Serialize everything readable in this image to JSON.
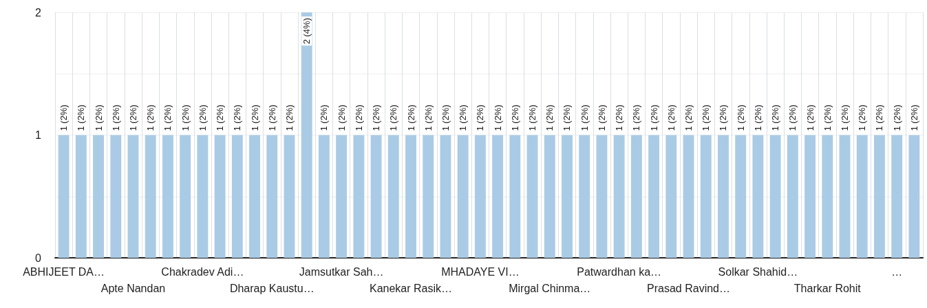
{
  "chart_data": {
    "type": "bar",
    "categories": [
      "ABHIJEET DA…",
      null,
      null,
      null,
      "Apte Nandan",
      null,
      null,
      null,
      "Chakradev Adi…",
      null,
      null,
      null,
      "Dharap Kaustu…",
      null,
      null,
      null,
      "Jamsutkar Sah…",
      null,
      null,
      null,
      "Kanekar Rasik…",
      null,
      null,
      null,
      "MHADAYE VI…",
      null,
      null,
      null,
      "Mirgal Chinma…",
      null,
      null,
      null,
      "Patwardhan ka…",
      null,
      null,
      null,
      "Prasad Ravind…",
      null,
      null,
      null,
      "Solkar Shahid…",
      null,
      null,
      null,
      "Tharkar Rohit",
      null,
      null,
      null,
      "…",
      null
    ],
    "values": [
      1,
      1,
      1,
      1,
      1,
      1,
      1,
      1,
      1,
      1,
      1,
      1,
      1,
      1,
      2,
      1,
      1,
      1,
      1,
      1,
      1,
      1,
      1,
      1,
      1,
      1,
      1,
      1,
      1,
      1,
      1,
      1,
      1,
      1,
      1,
      1,
      1,
      1,
      1,
      1,
      1,
      1,
      1,
      1,
      1,
      1,
      1,
      1,
      1,
      1
    ],
    "value_labels": [
      "1 (2%)",
      "1 (2%)",
      "1 (2%)",
      "1 (2%)",
      "1 (2%)",
      "1 (2%)",
      "1 (2%)",
      "1 (2%)",
      "1 (2%)",
      "1 (2%)",
      "1 (2%)",
      "1 (2%)",
      "1 (2%)",
      "1 (2%)",
      "2 (4%)",
      "1 (2%)",
      "1 (2%)",
      "1 (2%)",
      "1 (2%)",
      "1 (2%)",
      "1 (2%)",
      "1 (2%)",
      "1 (2%)",
      "1 (2%)",
      "1 (2%)",
      "1 (2%)",
      "1 (2%)",
      "1 (2%)",
      "1 (2%)",
      "1 (2%)",
      "1 (2%)",
      "1 (2%)",
      "1 (2%)",
      "1 (2%)",
      "1 (2%)",
      "1 (2%)",
      "1 (2%)",
      "1 (2%)",
      "1 (2%)",
      "1 (2%)",
      "1 (2%)",
      "1 (2%)",
      "1 (2%)",
      "1 (2%)",
      "1 (2%)",
      "1 (2%)",
      "1 (2%)",
      "1 (2%)",
      "1 (2%)",
      "1 (2%)"
    ],
    "color": "#aacbe5",
    "ylim": [
      0,
      2
    ],
    "yticks": [
      0,
      {
        "value": 0.5,
        "label": null
      },
      1,
      {
        "value": 1.5,
        "label": null
      },
      2
    ],
    "grid": true
  }
}
